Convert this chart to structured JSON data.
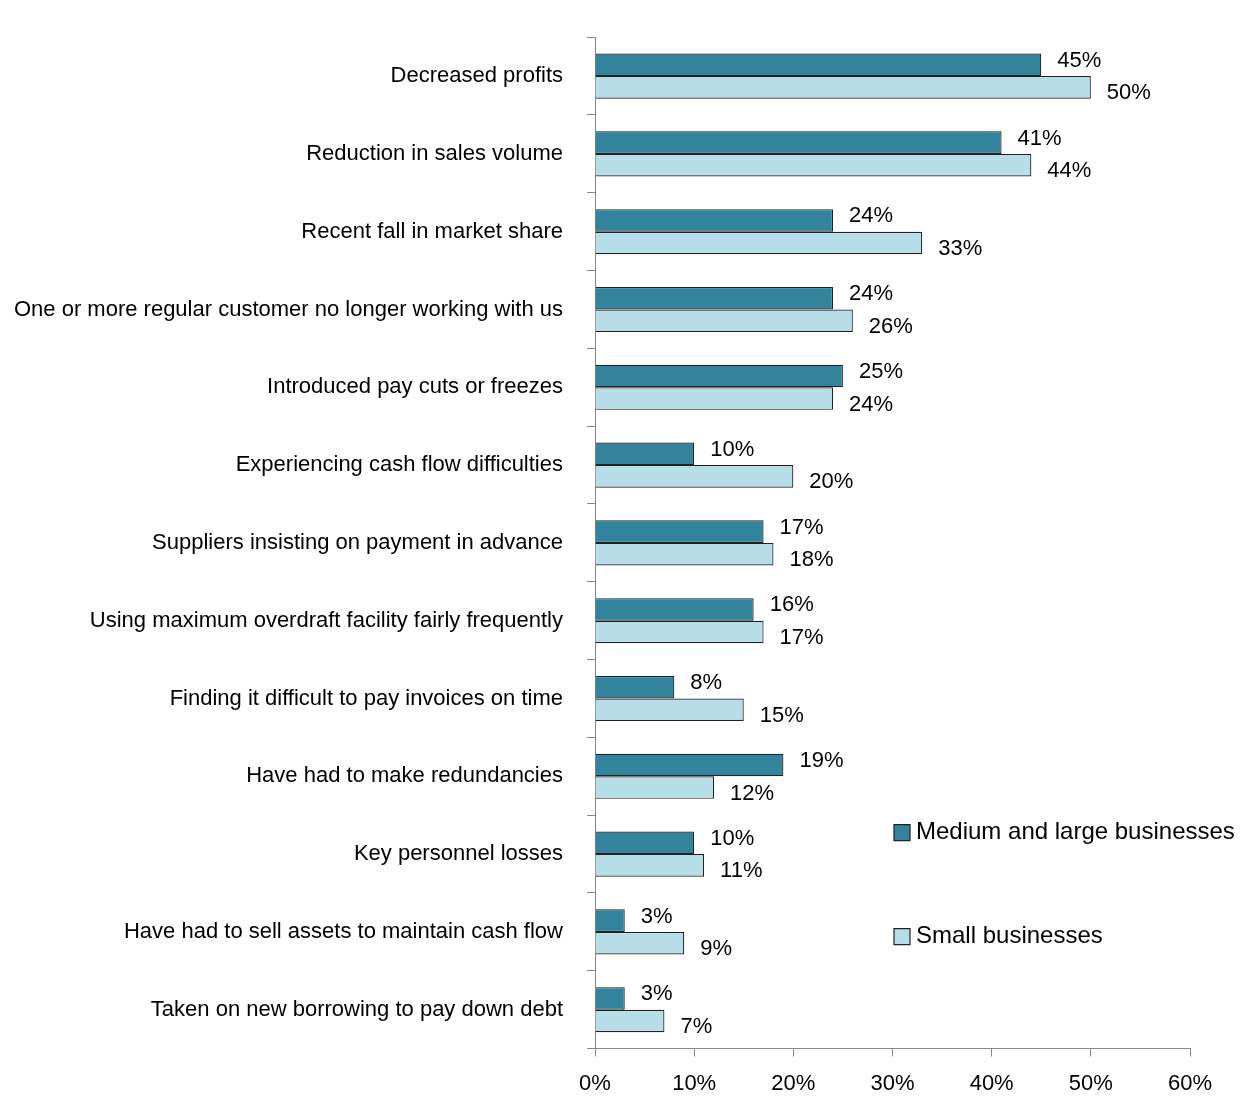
{
  "chart_data": {
    "type": "bar",
    "orientation": "horizontal",
    "categories": [
      "Decreased profits",
      "Reduction in sales volume",
      "Recent fall in market share",
      "One or more regular customer no longer working with us",
      "Introduced pay cuts or freezes",
      "Experiencing cash flow difficulties",
      "Suppliers insisting on payment in advance",
      "Using maximum overdraft facility fairly frequently",
      "Finding it difficult to pay invoices on time",
      "Have had to make redundancies",
      "Key personnel losses",
      "Have had to sell assets to maintain cash flow",
      "Taken on new borrowing to pay down debt"
    ],
    "series": [
      {
        "name": "Medium and large businesses",
        "color": "#31849b",
        "values": [
          45,
          41,
          24,
          24,
          25,
          10,
          17,
          16,
          8,
          19,
          10,
          3,
          3
        ],
        "value_labels": [
          "45%",
          "41%",
          "24%",
          "24%",
          "25%",
          "10%",
          "17%",
          "16%",
          "8%",
          "19%",
          "10%",
          "3%",
          "3%"
        ]
      },
      {
        "name": "Small businesses",
        "color": "#b7dee8",
        "values": [
          50,
          44,
          33,
          26,
          24,
          20,
          18,
          17,
          15,
          12,
          11,
          9,
          7
        ],
        "value_labels": [
          "50%",
          "44%",
          "33%",
          "26%",
          "24%",
          "20%",
          "18%",
          "17%",
          "15%",
          "12%",
          "11%",
          "9%",
          "7%"
        ]
      }
    ],
    "xlim": [
      0,
      60
    ],
    "xticks": [
      {
        "value": 0,
        "label": "0%"
      },
      {
        "value": 10,
        "label": "10%"
      },
      {
        "value": 20,
        "label": "20%"
      },
      {
        "value": 30,
        "label": "30%"
      },
      {
        "value": 40,
        "label": "40%"
      },
      {
        "value": 50,
        "label": "50%"
      },
      {
        "value": 60,
        "label": "60%"
      }
    ],
    "grid": false,
    "legend": "right"
  }
}
